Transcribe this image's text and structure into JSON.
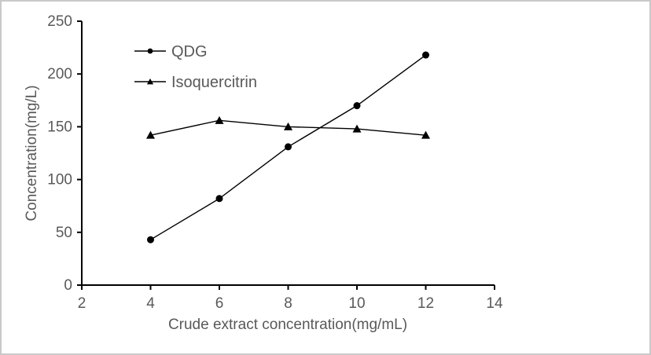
{
  "window": {
    "background": "#ffffff",
    "border_color": "#c9c9c9"
  },
  "chart_data": {
    "type": "line",
    "title": "",
    "xlabel": "Crude extract concentration(mg/mL)",
    "ylabel": "Concentration(mg/L)",
    "x": [
      4,
      6,
      8,
      10,
      12
    ],
    "series": [
      {
        "name": "QDG",
        "marker": "circle",
        "color": "#000000",
        "values": [
          43,
          82,
          131,
          170,
          218
        ]
      },
      {
        "name": "Isoquercitrin",
        "marker": "triangle",
        "color": "#000000",
        "values": [
          142,
          156,
          150,
          148,
          142
        ]
      }
    ],
    "xlim": [
      2,
      14
    ],
    "ylim": [
      0,
      250
    ],
    "xticks": [
      2,
      4,
      6,
      8,
      10,
      12,
      14
    ],
    "yticks": [
      0,
      50,
      100,
      150,
      200,
      250
    ],
    "grid": false,
    "legend_position": "upper-left-inside",
    "text_color": "#595959",
    "axis_color": "#000000"
  }
}
